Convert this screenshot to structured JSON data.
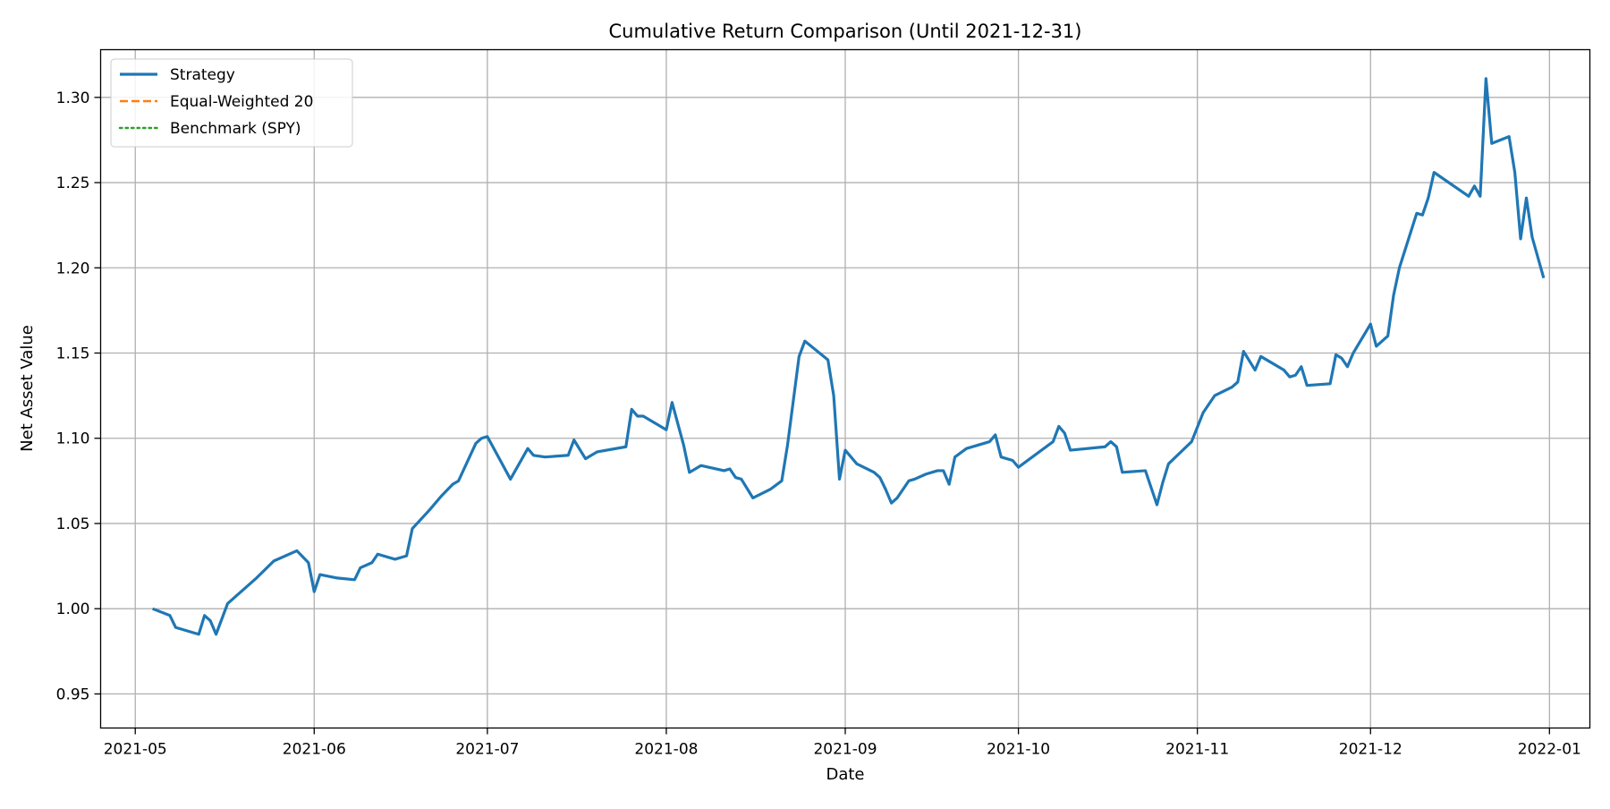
{
  "chart_data": {
    "type": "line",
    "title": "Cumulative Return Comparison  (Until 2021-12-31)",
    "xlabel": "Date",
    "ylabel": "Net Asset Value",
    "xlim": [
      "2021-04-25",
      "2022-01-08"
    ],
    "ylim": [
      0.93,
      1.328
    ],
    "grid": true,
    "legend_position": "upper-left",
    "x_ticks": [
      {
        "date": "2021-05-01",
        "label": "2021-05"
      },
      {
        "date": "2021-06-01",
        "label": "2021-06"
      },
      {
        "date": "2021-07-01",
        "label": "2021-07"
      },
      {
        "date": "2021-08-01",
        "label": "2021-08"
      },
      {
        "date": "2021-09-01",
        "label": "2021-09"
      },
      {
        "date": "2021-10-01",
        "label": "2021-10"
      },
      {
        "date": "2021-11-01",
        "label": "2021-11"
      },
      {
        "date": "2021-12-01",
        "label": "2021-12"
      },
      {
        "date": "2022-01-01",
        "label": "2022-01"
      }
    ],
    "y_ticks": [
      {
        "value": 0.95,
        "label": "0.95"
      },
      {
        "value": 1.0,
        "label": "1.00"
      },
      {
        "value": 1.05,
        "label": "1.05"
      },
      {
        "value": 1.1,
        "label": "1.10"
      },
      {
        "value": 1.15,
        "label": "1.15"
      },
      {
        "value": 1.2,
        "label": "1.20"
      },
      {
        "value": 1.25,
        "label": "1.25"
      },
      {
        "value": 1.3,
        "label": "1.30"
      }
    ],
    "series": [
      {
        "name": "Strategy",
        "color": "#1f77b4",
        "style": "solid",
        "points": [
          [
            "2021-05-04",
            1.0
          ],
          [
            "2021-05-07",
            0.996
          ],
          [
            "2021-05-08",
            0.989
          ],
          [
            "2021-05-11",
            0.986
          ],
          [
            "2021-05-12",
            0.985
          ],
          [
            "2021-05-13",
            0.996
          ],
          [
            "2021-05-14",
            0.993
          ],
          [
            "2021-05-15",
            0.985
          ],
          [
            "2021-05-17",
            1.003
          ],
          [
            "2021-05-20",
            1.012
          ],
          [
            "2021-05-22",
            1.018
          ],
          [
            "2021-05-25",
            1.028
          ],
          [
            "2021-05-29",
            1.034
          ],
          [
            "2021-05-31",
            1.027
          ],
          [
            "2021-06-01",
            1.01
          ],
          [
            "2021-06-02",
            1.02
          ],
          [
            "2021-06-05",
            1.018
          ],
          [
            "2021-06-08",
            1.017
          ],
          [
            "2021-06-09",
            1.024
          ],
          [
            "2021-06-11",
            1.027
          ],
          [
            "2021-06-12",
            1.032
          ],
          [
            "2021-06-15",
            1.029
          ],
          [
            "2021-06-17",
            1.031
          ],
          [
            "2021-06-18",
            1.047
          ],
          [
            "2021-06-21",
            1.058
          ],
          [
            "2021-06-23",
            1.066
          ],
          [
            "2021-06-25",
            1.073
          ],
          [
            "2021-06-26",
            1.075
          ],
          [
            "2021-06-29",
            1.097
          ],
          [
            "2021-06-30",
            1.1
          ],
          [
            "2021-07-01",
            1.101
          ],
          [
            "2021-07-05",
            1.076
          ],
          [
            "2021-07-08",
            1.094
          ],
          [
            "2021-07-09",
            1.09
          ],
          [
            "2021-07-11",
            1.089
          ],
          [
            "2021-07-15",
            1.09
          ],
          [
            "2021-07-16",
            1.099
          ],
          [
            "2021-07-18",
            1.088
          ],
          [
            "2021-07-20",
            1.092
          ],
          [
            "2021-07-25",
            1.095
          ],
          [
            "2021-07-26",
            1.117
          ],
          [
            "2021-07-27",
            1.113
          ],
          [
            "2021-07-28",
            1.113
          ],
          [
            "2021-07-30",
            1.109
          ],
          [
            "2021-08-01",
            1.105
          ],
          [
            "2021-08-02",
            1.121
          ],
          [
            "2021-08-04",
            1.096
          ],
          [
            "2021-08-05",
            1.08
          ],
          [
            "2021-08-07",
            1.084
          ],
          [
            "2021-08-11",
            1.081
          ],
          [
            "2021-08-12",
            1.082
          ],
          [
            "2021-08-13",
            1.077
          ],
          [
            "2021-08-14",
            1.076
          ],
          [
            "2021-08-16",
            1.065
          ],
          [
            "2021-08-19",
            1.07
          ],
          [
            "2021-08-21",
            1.075
          ],
          [
            "2021-08-22",
            1.096
          ],
          [
            "2021-08-24",
            1.148
          ],
          [
            "2021-08-25",
            1.157
          ],
          [
            "2021-08-29",
            1.146
          ],
          [
            "2021-08-30",
            1.125
          ],
          [
            "2021-08-31",
            1.076
          ],
          [
            "2021-09-01",
            1.093
          ],
          [
            "2021-09-03",
            1.085
          ],
          [
            "2021-09-06",
            1.08
          ],
          [
            "2021-09-07",
            1.077
          ],
          [
            "2021-09-08",
            1.07
          ],
          [
            "2021-09-09",
            1.062
          ],
          [
            "2021-09-10",
            1.065
          ],
          [
            "2021-09-12",
            1.075
          ],
          [
            "2021-09-13",
            1.076
          ],
          [
            "2021-09-15",
            1.079
          ],
          [
            "2021-09-17",
            1.081
          ],
          [
            "2021-09-18",
            1.081
          ],
          [
            "2021-09-19",
            1.073
          ],
          [
            "2021-09-20",
            1.089
          ],
          [
            "2021-09-22",
            1.094
          ],
          [
            "2021-09-26",
            1.098
          ],
          [
            "2021-09-27",
            1.102
          ],
          [
            "2021-09-28",
            1.089
          ],
          [
            "2021-09-30",
            1.087
          ],
          [
            "2021-10-01",
            1.083
          ],
          [
            "2021-10-07",
            1.098
          ],
          [
            "2021-10-08",
            1.107
          ],
          [
            "2021-10-09",
            1.103
          ],
          [
            "2021-10-10",
            1.093
          ],
          [
            "2021-10-16",
            1.095
          ],
          [
            "2021-10-17",
            1.098
          ],
          [
            "2021-10-18",
            1.095
          ],
          [
            "2021-10-19",
            1.08
          ],
          [
            "2021-10-23",
            1.081
          ],
          [
            "2021-10-24",
            1.071
          ],
          [
            "2021-10-25",
            1.061
          ],
          [
            "2021-10-26",
            1.074
          ],
          [
            "2021-10-27",
            1.085
          ],
          [
            "2021-10-31",
            1.098
          ],
          [
            "2021-11-02",
            1.115
          ],
          [
            "2021-11-04",
            1.125
          ],
          [
            "2021-11-07",
            1.13
          ],
          [
            "2021-11-08",
            1.133
          ],
          [
            "2021-11-09",
            1.151
          ],
          [
            "2021-11-11",
            1.14
          ],
          [
            "2021-11-12",
            1.148
          ],
          [
            "2021-11-16",
            1.14
          ],
          [
            "2021-11-17",
            1.136
          ],
          [
            "2021-11-18",
            1.137
          ],
          [
            "2021-11-19",
            1.142
          ],
          [
            "2021-11-20",
            1.131
          ],
          [
            "2021-11-24",
            1.132
          ],
          [
            "2021-11-25",
            1.149
          ],
          [
            "2021-11-26",
            1.147
          ],
          [
            "2021-11-27",
            1.142
          ],
          [
            "2021-11-28",
            1.15
          ],
          [
            "2021-12-01",
            1.167
          ],
          [
            "2021-12-02",
            1.154
          ],
          [
            "2021-12-04",
            1.16
          ],
          [
            "2021-12-05",
            1.184
          ],
          [
            "2021-12-06",
            1.2
          ],
          [
            "2021-12-09",
            1.232
          ],
          [
            "2021-12-10",
            1.231
          ],
          [
            "2021-12-11",
            1.241
          ],
          [
            "2021-12-12",
            1.256
          ],
          [
            "2021-12-18",
            1.242
          ],
          [
            "2021-12-19",
            1.248
          ],
          [
            "2021-12-20",
            1.242
          ],
          [
            "2021-12-21",
            1.311
          ],
          [
            "2021-12-22",
            1.273
          ],
          [
            "2021-12-25",
            1.277
          ],
          [
            "2021-12-26",
            1.256
          ],
          [
            "2021-12-27",
            1.217
          ],
          [
            "2021-12-28",
            1.241
          ],
          [
            "2021-12-29",
            1.218
          ],
          [
            "2021-12-31",
            1.194
          ]
        ]
      },
      {
        "name": "Equal-Weighted 20",
        "color": "#ff7f0e",
        "style": "dashed",
        "points": []
      },
      {
        "name": "Benchmark (SPY)",
        "color": "#2ca02c",
        "style": "dotted",
        "points": []
      }
    ]
  }
}
